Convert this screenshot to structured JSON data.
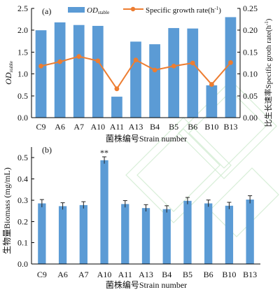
{
  "chart_data": [
    {
      "type": "bar",
      "panel_label": "(a)",
      "categories": [
        "C9",
        "A6",
        "A7",
        "A10",
        "A11",
        "A13",
        "B4",
        "B5",
        "B6",
        "B10",
        "B13"
      ],
      "series": [
        {
          "name": "OD",
          "name_sub": "stable",
          "type": "bar",
          "color": "#5b9bd5",
          "axis": "left",
          "values": [
            2.0,
            2.18,
            2.12,
            2.1,
            0.48,
            1.74,
            1.68,
            2.05,
            2.04,
            0.74,
            2.3
          ]
        },
        {
          "name": "Specific growth rate(h",
          "name_sup": "-1",
          "name_end": ")",
          "type": "line",
          "color": "#ed7d31",
          "axis": "right",
          "values": [
            0.118,
            0.128,
            0.14,
            0.13,
            0.066,
            0.132,
            0.109,
            0.118,
            0.125,
            0.076,
            0.126
          ]
        }
      ],
      "y_left_label": "OD",
      "y_left_label_sub": "stable",
      "y_left_ticks": [
        "0.0",
        "0.5",
        "1.0",
        "1.5",
        "2.0",
        "2.5"
      ],
      "ylim_left": [
        0,
        2.5
      ],
      "y_right_label": "比生长速率Specific groth rate(h",
      "y_right_label_sup": "-1",
      "y_right_label_end": ")",
      "y_right_ticks": [
        "0.00",
        "0.05",
        "0.10",
        "0.15",
        "0.20",
        "0.25"
      ],
      "ylim_right": [
        0,
        0.25
      ],
      "xlabel": "菌株编号Strain number",
      "legend_position": "top",
      "grid": false
    },
    {
      "type": "bar",
      "panel_label": "(b)",
      "categories": [
        "C9",
        "A6",
        "A7",
        "A10",
        "A11",
        "A13",
        "B4",
        "B5",
        "B6",
        "B10",
        "B13"
      ],
      "values": [
        0.285,
        0.272,
        0.277,
        0.488,
        0.282,
        0.263,
        0.258,
        0.297,
        0.285,
        0.274,
        0.303
      ],
      "errors": [
        0.018,
        0.016,
        0.016,
        0.016,
        0.016,
        0.016,
        0.016,
        0.016,
        0.016,
        0.016,
        0.018
      ],
      "annotations": [
        {
          "category": "A10",
          "text": "**"
        }
      ],
      "color": "#5b9bd5",
      "ylabel": "生物量Biomass (mg/mL)",
      "y_ticks": [
        "0.0",
        "0.1",
        "0.2",
        "0.3",
        "0.4",
        "0.5"
      ],
      "ylim": [
        0,
        0.55
      ],
      "xlabel": "菌株编号Strain number",
      "grid": false
    }
  ]
}
